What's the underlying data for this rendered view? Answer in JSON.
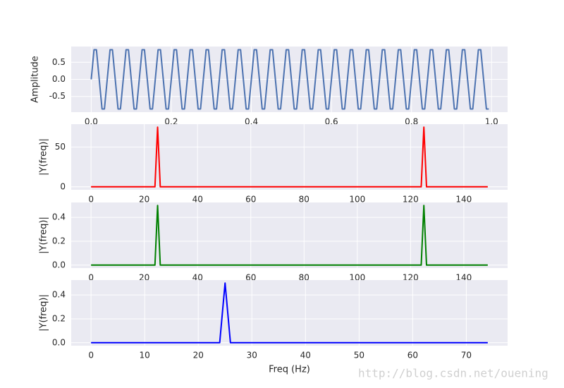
{
  "chart_data": [
    {
      "type": "line",
      "color": "#4c72b0",
      "ylabel": "Amplitude",
      "grid": true,
      "xlim": [
        -0.05,
        1.04
      ],
      "ylim": [
        -0.96,
        0.96
      ],
      "xticks": [
        {
          "value": 0,
          "label": "0.0"
        },
        0.2,
        0.4,
        0.6,
        0.8,
        {
          "value": 1,
          "label": "1.0"
        }
      ],
      "yticks": [
        -0.5,
        {
          "value": 0,
          "label": "0.0"
        },
        0.5
      ],
      "x": [
        0,
        0.007,
        0.013,
        0.02,
        0.027,
        0.033,
        0.04,
        0.047,
        0.053,
        0.06,
        0.067,
        0.073,
        0.08,
        0.087,
        0.093,
        0.1,
        0.107,
        0.113,
        0.12,
        0.127,
        0.133,
        0.14,
        0.147,
        0.153,
        0.16,
        0.167,
        0.173,
        0.18,
        0.187,
        0.193,
        0.2,
        0.207,
        0.213,
        0.22,
        0.227,
        0.233,
        0.24,
        0.247,
        0.253,
        0.26,
        0.267,
        0.273,
        0.28,
        0.287,
        0.293,
        0.3,
        0.307,
        0.313,
        0.32,
        0.327,
        0.333,
        0.34,
        0.347,
        0.353,
        0.36,
        0.367,
        0.373,
        0.38,
        0.387,
        0.393,
        0.4,
        0.407,
        0.413,
        0.42,
        0.427,
        0.433,
        0.44,
        0.447,
        0.453,
        0.46,
        0.467,
        0.473,
        0.48,
        0.487,
        0.493,
        0.5,
        0.507,
        0.513,
        0.52,
        0.527,
        0.533,
        0.54,
        0.547,
        0.553,
        0.56,
        0.567,
        0.573,
        0.58,
        0.587,
        0.593,
        0.6,
        0.607,
        0.613,
        0.62,
        0.627,
        0.633,
        0.64,
        0.647,
        0.653,
        0.66,
        0.667,
        0.673,
        0.68,
        0.687,
        0.693,
        0.7,
        0.707,
        0.713,
        0.72,
        0.727,
        0.733,
        0.74,
        0.747,
        0.753,
        0.76,
        0.767,
        0.773,
        0.78,
        0.787,
        0.793,
        0.8,
        0.807,
        0.813,
        0.82,
        0.827,
        0.833,
        0.84,
        0.847,
        0.853,
        0.86,
        0.867,
        0.873,
        0.88,
        0.887,
        0.893,
        0.9,
        0.907,
        0.913,
        0.92,
        0.927,
        0.933,
        0.94,
        0.947,
        0.953,
        0.96,
        0.967,
        0.973,
        0.98,
        0.987,
        0.993
      ],
      "values": [
        0,
        0.866,
        0.866,
        0,
        -0.866,
        -0.866,
        0,
        0.866,
        0.866,
        0,
        -0.866,
        -0.866,
        0,
        0.866,
        0.866,
        0,
        -0.866,
        -0.866,
        0,
        0.866,
        0.866,
        0,
        -0.866,
        -0.866,
        0,
        0.866,
        0.866,
        0,
        -0.866,
        -0.866,
        0,
        0.866,
        0.866,
        0,
        -0.866,
        -0.866,
        0,
        0.866,
        0.866,
        0,
        -0.866,
        -0.866,
        0,
        0.866,
        0.866,
        0,
        -0.866,
        -0.866,
        0,
        0.866,
        0.866,
        0,
        -0.866,
        -0.866,
        0,
        0.866,
        0.866,
        0,
        -0.866,
        -0.866,
        0,
        0.866,
        0.866,
        0,
        -0.866,
        -0.866,
        0,
        0.866,
        0.866,
        0,
        -0.866,
        -0.866,
        0,
        0.866,
        0.866,
        0,
        -0.866,
        -0.866,
        0,
        0.866,
        0.866,
        0,
        -0.866,
        -0.866,
        0,
        0.866,
        0.866,
        0,
        -0.866,
        -0.866,
        0,
        0.866,
        0.866,
        0,
        -0.866,
        -0.866,
        0,
        0.866,
        0.866,
        0,
        -0.866,
        -0.866,
        0,
        0.866,
        0.866,
        0,
        -0.866,
        -0.866,
        0,
        0.866,
        0.866,
        0,
        -0.866,
        -0.866,
        0,
        0.866,
        0.866,
        0,
        -0.866,
        -0.866,
        0,
        0.866,
        0.866,
        0,
        -0.866,
        -0.866,
        0,
        0.866,
        0.866,
        0,
        -0.866,
        -0.866,
        0,
        0.866,
        0.866,
        0,
        -0.866,
        -0.866,
        0,
        0.866,
        0.866,
        0,
        -0.866,
        -0.866,
        0,
        0.866,
        0.866,
        0,
        -0.866,
        -0.866
      ]
    },
    {
      "type": "line",
      "color": "#ff0000",
      "ylabel": "|Y(freq)|",
      "grid": true,
      "xlim": [
        -7.45,
        156.45
      ],
      "ylim": [
        -3.75,
        78.75
      ],
      "xticks": [
        0,
        20,
        40,
        60,
        80,
        100,
        120,
        140
      ],
      "yticks": [
        0,
        50
      ],
      "x": [
        0,
        24,
        25,
        26,
        124,
        125,
        126,
        149
      ],
      "values": [
        0,
        0,
        75,
        0,
        0,
        75,
        0,
        0
      ]
    },
    {
      "type": "line",
      "color": "#008000",
      "ylabel": "|Y(freq)|",
      "grid": true,
      "xlim": [
        -7.45,
        156.45
      ],
      "ylim": [
        -0.025,
        0.525
      ],
      "xticks": [
        0,
        20,
        40,
        60,
        80,
        100,
        120,
        140
      ],
      "yticks": [
        {
          "value": 0,
          "label": "0.0"
        },
        0.2,
        0.4
      ],
      "x": [
        0,
        24,
        25,
        26,
        124,
        125,
        126,
        149
      ],
      "values": [
        0,
        0,
        0.5,
        0,
        0,
        0.5,
        0,
        0
      ]
    },
    {
      "type": "line",
      "color": "#0000ff",
      "ylabel": "|Y(freq)|",
      "xlabel": "Freq (Hz)",
      "grid": true,
      "xlim": [
        -3.7,
        77.7
      ],
      "ylim": [
        -0.025,
        0.525
      ],
      "xticks": [
        0,
        10,
        20,
        30,
        40,
        50,
        60,
        70
      ],
      "yticks": [
        {
          "value": 0,
          "label": "0.0"
        },
        0.2,
        0.4
      ],
      "x": [
        0,
        24,
        25,
        26,
        74
      ],
      "values": [
        0,
        0,
        0.5,
        0,
        0
      ]
    }
  ],
  "watermark": "http://blog.csdn.net/ouening"
}
